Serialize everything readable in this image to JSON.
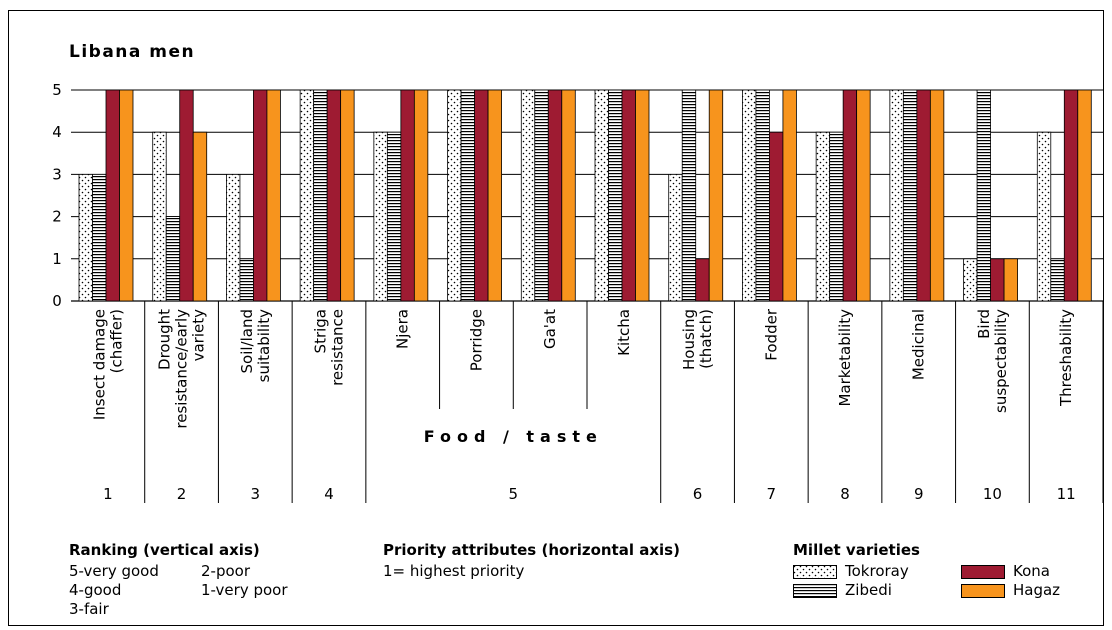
{
  "chart_data": {
    "type": "bar",
    "title": "Libana men",
    "yticks": [
      "0",
      "1",
      "2",
      "3",
      "4",
      "5"
    ],
    "ylim": [
      0,
      5
    ],
    "categories": [
      "Insect damage (chaffer)",
      "Drought resistance/early variety",
      "Soil/land suitability",
      "Striga resistance",
      "Njera",
      "Porridge",
      "Ga'at",
      "Kitcha",
      "Housing (thatch)",
      "Fodder",
      "Marketability",
      "Medicinal",
      "Bird suspectability",
      "Threshability"
    ],
    "category_lines": [
      [
        "Insect damage",
        "(chaffer)"
      ],
      [
        "Drought",
        "resistance/early",
        "variety"
      ],
      [
        "Soil/land",
        "suitability"
      ],
      [
        "Striga",
        "resistance"
      ],
      [
        "Njera"
      ],
      [
        "Porridge"
      ],
      [
        "Ga'at"
      ],
      [
        "Kitcha"
      ],
      [
        "Housing",
        "(thatch)"
      ],
      [
        "Fodder"
      ],
      [
        "Marketability"
      ],
      [
        "Medicinal"
      ],
      [
        "Bird",
        "suspectability"
      ],
      [
        "Threshability"
      ]
    ],
    "series": [
      {
        "name": "Tokroray",
        "pattern": "dots",
        "values": [
          3,
          4,
          3,
          5,
          4,
          5,
          5,
          5,
          3,
          5,
          4,
          5,
          1,
          4
        ]
      },
      {
        "name": "Zibedi",
        "pattern": "stripes",
        "values": [
          3,
          2,
          1,
          5,
          4,
          5,
          5,
          5,
          5,
          5,
          4,
          5,
          5,
          1
        ]
      },
      {
        "name": "Kona",
        "color": "#9e1b32",
        "values": [
          5,
          5,
          5,
          5,
          5,
          5,
          5,
          5,
          1,
          4,
          5,
          5,
          1,
          5
        ]
      },
      {
        "name": "Hagaz",
        "color": "#f7941d",
        "values": [
          5,
          4,
          5,
          5,
          5,
          5,
          5,
          5,
          5,
          5,
          5,
          5,
          1,
          5
        ]
      }
    ],
    "priority_groups": [
      {
        "rank": "1",
        "categories": [
          0
        ]
      },
      {
        "rank": "2",
        "categories": [
          1
        ]
      },
      {
        "rank": "3",
        "categories": [
          2
        ]
      },
      {
        "rank": "4",
        "categories": [
          3
        ]
      },
      {
        "rank": "5",
        "categories": [
          4,
          5,
          6,
          7
        ],
        "label": "Food / taste"
      },
      {
        "rank": "6",
        "categories": [
          8
        ]
      },
      {
        "rank": "7",
        "categories": [
          9
        ]
      },
      {
        "rank": "8",
        "categories": [
          10
        ]
      },
      {
        "rank": "9",
        "categories": [
          11
        ]
      },
      {
        "rank": "10",
        "categories": [
          12
        ]
      },
      {
        "rank": "11",
        "categories": [
          13
        ]
      }
    ],
    "grid": true
  },
  "legend": {
    "ranking_title": "Ranking (vertical axis)",
    "ranking_items": [
      "5-very good",
      "2-poor",
      "4-good",
      "1-very poor",
      "3-fair"
    ],
    "priority_title": "Priority attributes (horizontal axis)",
    "priority_note": "1= highest priority",
    "varieties_title": "Millet varieties"
  }
}
